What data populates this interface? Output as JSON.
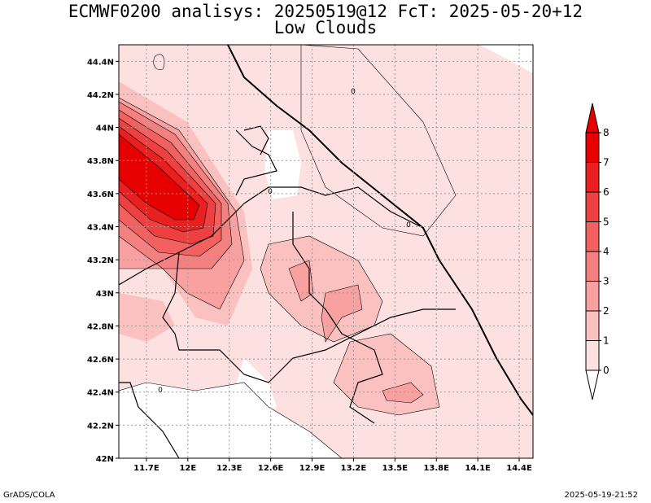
{
  "title": {
    "line1": "ECMWF0200 analisys: 20250519@12 FcT: 2025-05-20+12",
    "line2": "Low Clouds"
  },
  "footer": {
    "left": "GrADS/COLA",
    "right": "2025-05-19-21:52"
  },
  "map": {
    "lon_range": [
      11.5,
      14.5
    ],
    "lat_range": [
      42.0,
      44.5
    ],
    "lon_ticks": [
      "11.7E",
      "12E",
      "12.3E",
      "12.6E",
      "12.9E",
      "13.2E",
      "13.5E",
      "13.8E",
      "14.1E",
      "14.4E"
    ],
    "lat_ticks": [
      "42N",
      "42.2N",
      "42.4N",
      "42.6N",
      "42.8N",
      "43N",
      "43.2N",
      "43.4N",
      "43.6N",
      "43.8N",
      "44N",
      "44.2N",
      "44.4N"
    ],
    "grid": true,
    "contour_labels": [
      "0",
      "0",
      "0",
      "0"
    ]
  },
  "colorbar": {
    "levels": [
      "0",
      "1",
      "2",
      "3",
      "4",
      "5",
      "6",
      "7",
      "8"
    ],
    "colors": [
      "#ffffff",
      "#fde0e0",
      "#fbc0c0",
      "#f9a0a0",
      "#f58080",
      "#f26060",
      "#ee4040",
      "#ea2020",
      "#e60000",
      "#e60000"
    ]
  }
}
